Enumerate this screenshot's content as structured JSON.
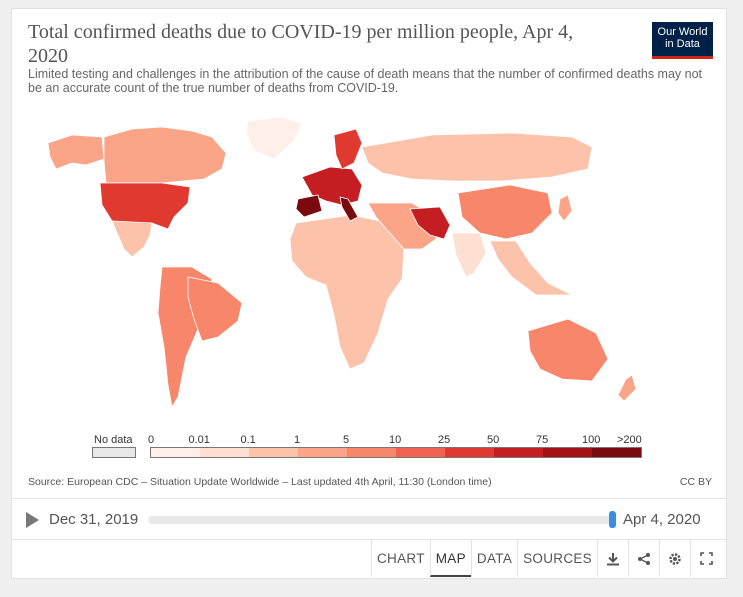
{
  "header": {
    "title": "Total confirmed deaths due to COVID-19 per million people, Apr 4, 2020",
    "subtitle": "Limited testing and challenges in the attribution of the cause of death means that the number of confirmed deaths may not be an accurate count of the true number of deaths from COVID-19.",
    "logo_line1": "Our World",
    "logo_line2": "in Data"
  },
  "legend": {
    "no_data_label": "No data",
    "bins": [
      "0",
      "0.01",
      "0.1",
      "1",
      "5",
      "10",
      "25",
      "50",
      "75",
      "100",
      ">200"
    ],
    "colors": [
      "#fef0e8",
      "#fde0d2",
      "#fcc2aa",
      "#fca487",
      "#f8866a",
      "#f16350",
      "#e0392f",
      "#c51e22",
      "#a41218",
      "#7a0a10"
    ],
    "no_data_color": "#e8e8e8"
  },
  "map_colors": {
    "usa": "#e0392f",
    "canada": "#fca487",
    "alaska": "#fca487",
    "mexico": "#fcc2aa",
    "greenland": "#fef0e8",
    "south_america": "#f8866a",
    "brazil": "#f8866a",
    "africa": "#fcc2aa",
    "europe_west": "#c51e22",
    "spain": "#7a0a10",
    "italy": "#7a0a10",
    "scandinavia": "#e0392f",
    "russia": "#fcc2aa",
    "middle_east": "#fca487",
    "iran": "#c51e22",
    "china": "#f8866a",
    "india": "#fde0d2",
    "southeast_asia": "#fcc2aa",
    "australia": "#f8866a",
    "nz": "#fca487",
    "japan": "#fca487"
  },
  "footer": {
    "source": "Source: European CDC – Situation Update Worldwide – Last updated 4th April, 11:30 (London time)",
    "license": "CC BY"
  },
  "timeline": {
    "start_date": "Dec 31, 2019",
    "end_date": "Apr 4, 2020"
  },
  "tabs": [
    {
      "label": "CHART"
    },
    {
      "label": "MAP"
    },
    {
      "label": "DATA"
    },
    {
      "label": "SOURCES"
    }
  ]
}
